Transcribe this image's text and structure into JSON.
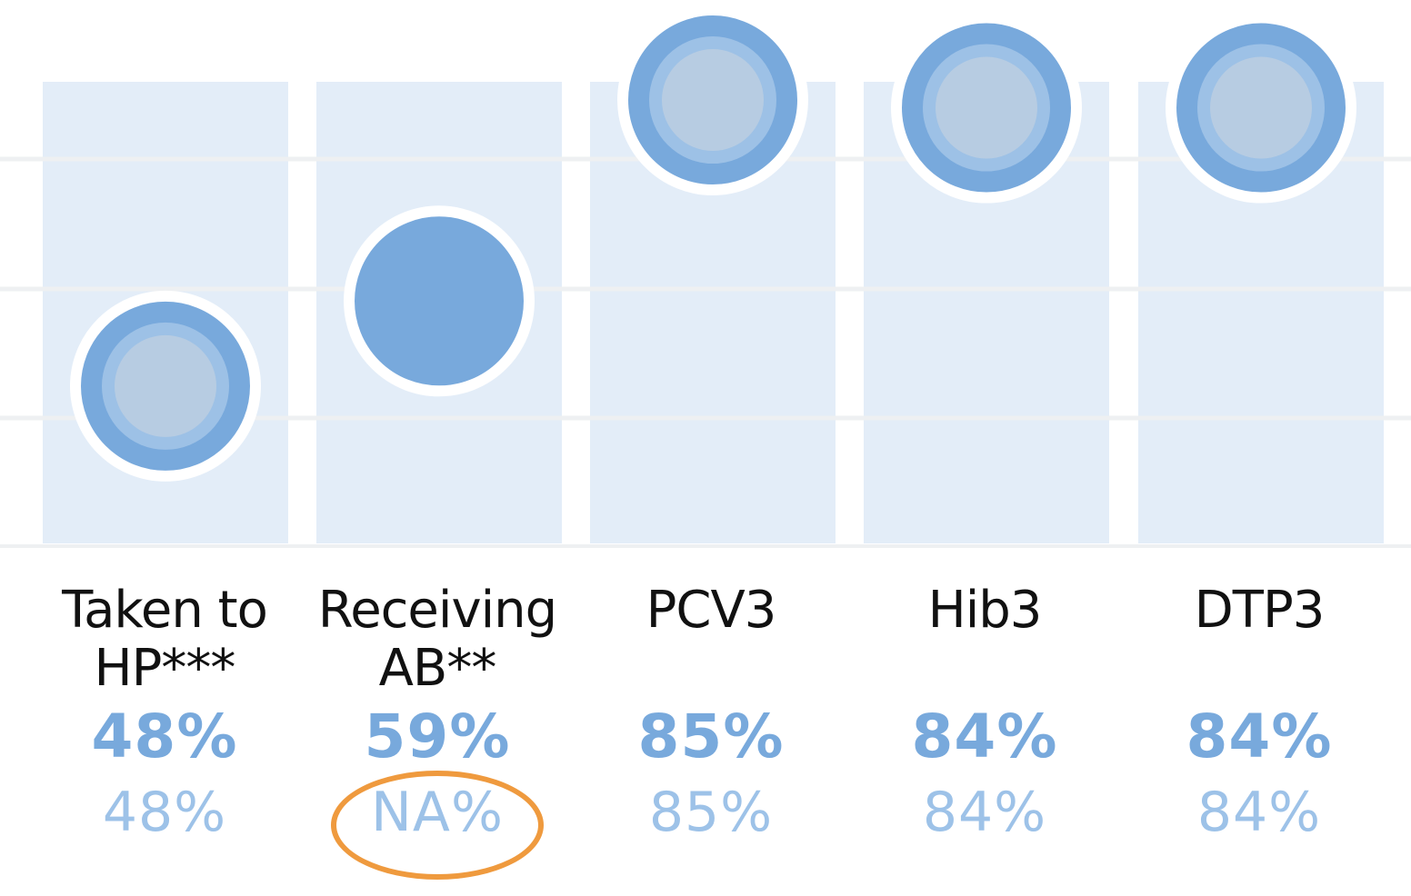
{
  "colors": {
    "column_bg": "#e3edf8",
    "gridline": "#eef0f2",
    "marker_outer": "#78a9dc",
    "marker_mid": "#9dc1e6",
    "marker_inner": "#b7cce2",
    "marker_stroke": "#ffffff",
    "label_text": "#111111",
    "value_main": "#78a9dc",
    "value_alt": "#9dc2e8",
    "highlight": "#ef9a3e"
  },
  "chart_data": {
    "type": "scatter",
    "ylim": [
      0,
      100
    ],
    "grid": true,
    "categories": [
      "Taken to HP***",
      "Receiving AB**",
      "PCV3",
      "Hib3",
      "DTP3"
    ],
    "series": [
      {
        "values": [
          48,
          59,
          85,
          84,
          84
        ]
      },
      {
        "values": [
          48,
          null,
          85,
          84,
          84
        ]
      }
    ],
    "labels": [
      {
        "category": "Taken to\nHP***",
        "primary": "48%",
        "secondary": "48%"
      },
      {
        "category": "Receiving\nAB**",
        "primary": "59%",
        "secondary": "NA%"
      },
      {
        "category": "PCV3",
        "primary": "85%",
        "secondary": "85%"
      },
      {
        "category": "Hib3",
        "primary": "84%",
        "secondary": "84%"
      },
      {
        "category": "DTP3",
        "primary": "84%",
        "secondary": "84%"
      }
    ],
    "highlighted_label": "NA%"
  }
}
